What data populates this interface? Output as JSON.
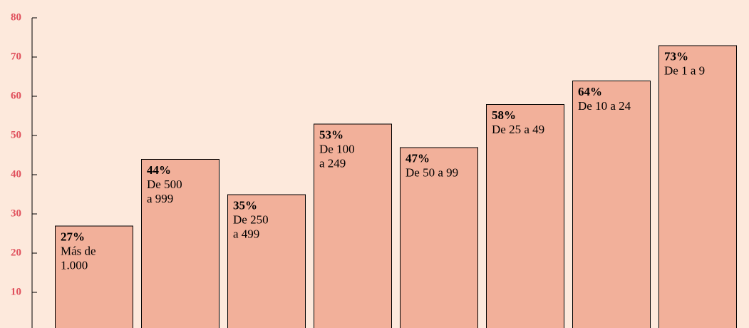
{
  "chart_data": {
    "type": "bar",
    "categories": [
      "Más de\n1.000",
      "De 500\na 999",
      "De 250\na 499",
      "De 100\na 249",
      "De 50 a 99",
      "De 25 a 49",
      "De 10 a 24",
      "De 1 a 9"
    ],
    "values": [
      27,
      44,
      35,
      53,
      47,
      58,
      64,
      73
    ],
    "value_labels": [
      "27%",
      "44%",
      "35%",
      "53%",
      "47%",
      "58%",
      "64%",
      "73%"
    ],
    "color": "#f2b09a",
    "ylim": [
      0,
      80
    ],
    "yticks": [
      10,
      20,
      30,
      40,
      50,
      60,
      70,
      80
    ]
  }
}
